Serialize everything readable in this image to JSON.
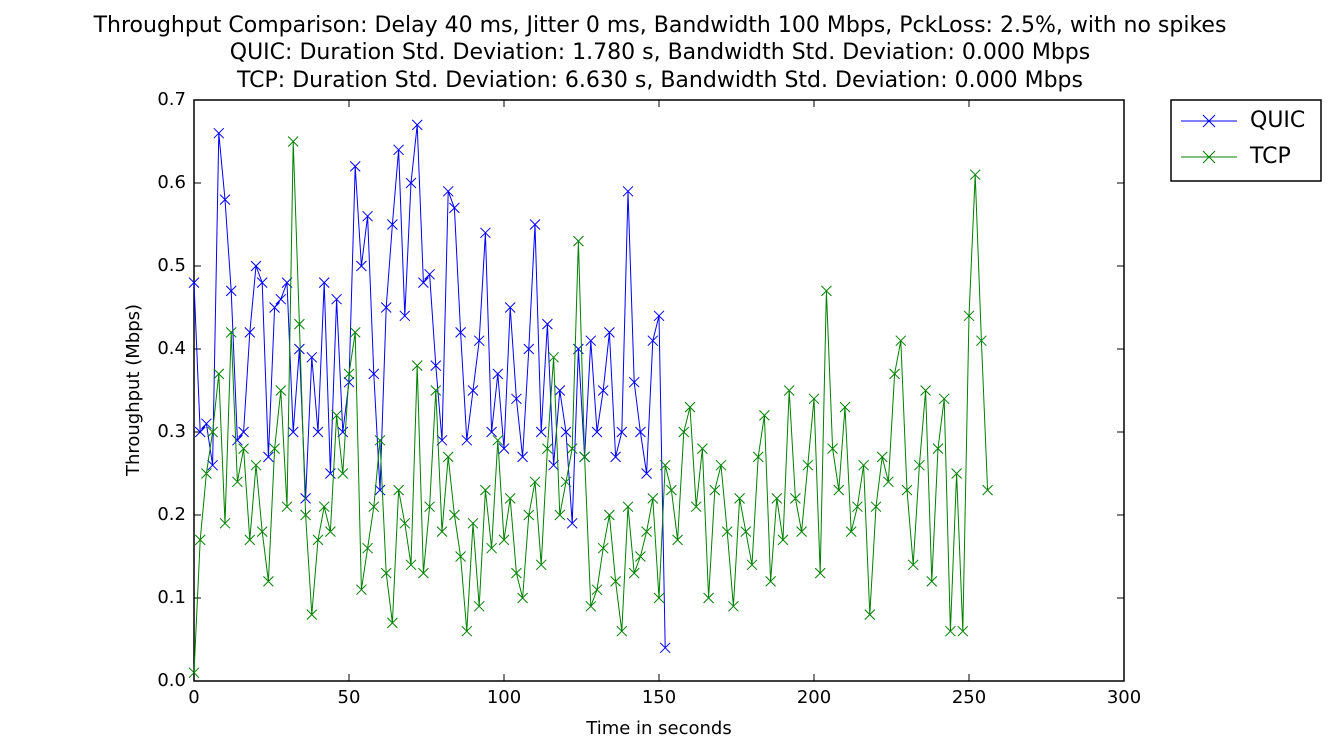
{
  "chart_data": {
    "type": "line",
    "title": "Throughput Comparison: Delay 40 ms, Jitter 0 ms, Bandwidth 100 Mbps, PckLoss: 2.5%, with no spikes",
    "subtitle": [
      "QUIC: Duration Std. Deviation: 1.780 s, Bandwidth Std. Deviation: 0.000 Mbps",
      "TCP: Duration Std. Deviation: 6.630 s, Bandwidth Std. Deviation: 0.000 Mbps"
    ],
    "x_label": "Time in seconds",
    "y_label": "Throughput (Mbps)",
    "xlim": [
      0,
      300
    ],
    "xticks": [
      0,
      50,
      100,
      150,
      200,
      250,
      300
    ],
    "ylim": [
      0,
      0.7
    ],
    "yticks": [
      {
        "value": 0,
        "label": "0.0"
      },
      0.1,
      0.2,
      0.3,
      0.4,
      0.5,
      0.6,
      0.7
    ],
    "legend": "outside-upper-right",
    "marker": "x",
    "series": [
      {
        "name": "QUIC",
        "color": "#0000ff",
        "x": [
          0,
          2,
          4,
          6,
          8,
          10,
          12,
          14,
          16,
          18,
          20,
          22,
          24,
          26,
          28,
          30,
          32,
          34,
          36,
          38,
          40,
          42,
          44,
          46,
          48,
          50,
          52,
          54,
          56,
          58,
          60,
          62,
          64,
          66,
          68,
          70,
          72,
          74,
          76,
          78,
          80,
          82,
          84,
          86,
          88,
          90,
          92,
          94,
          96,
          98,
          100,
          102,
          104,
          106,
          108,
          110,
          112,
          114,
          116,
          118,
          120,
          122,
          124,
          126,
          128,
          130,
          132,
          134,
          136,
          138,
          140,
          142,
          144,
          146,
          148,
          150,
          152
        ],
        "values": [
          0.48,
          0.3,
          0.31,
          0.26,
          0.66,
          0.58,
          0.47,
          0.29,
          0.3,
          0.42,
          0.5,
          0.48,
          0.27,
          0.45,
          0.46,
          0.48,
          0.3,
          0.4,
          0.22,
          0.39,
          0.3,
          0.48,
          0.25,
          0.46,
          0.3,
          0.36,
          0.62,
          0.5,
          0.56,
          0.37,
          0.23,
          0.45,
          0.55,
          0.64,
          0.44,
          0.6,
          0.67,
          0.48,
          0.49,
          0.38,
          0.29,
          0.59,
          0.57,
          0.42,
          0.29,
          0.35,
          0.41,
          0.54,
          0.3,
          0.37,
          0.28,
          0.45,
          0.34,
          0.27,
          0.4,
          0.55,
          0.3,
          0.43,
          0.26,
          0.35,
          0.3,
          0.19,
          0.4,
          0.27,
          0.41,
          0.3,
          0.35,
          0.42,
          0.27,
          0.3,
          0.59,
          0.36,
          0.3,
          0.25,
          0.41,
          0.44,
          0.04
        ]
      },
      {
        "name": "TCP",
        "color": "#008000",
        "x": [
          0,
          2,
          4,
          6,
          8,
          10,
          12,
          14,
          16,
          18,
          20,
          22,
          24,
          26,
          28,
          30,
          32,
          34,
          36,
          38,
          40,
          42,
          44,
          46,
          48,
          50,
          52,
          54,
          56,
          58,
          60,
          62,
          64,
          66,
          68,
          70,
          72,
          74,
          76,
          78,
          80,
          82,
          84,
          86,
          88,
          90,
          92,
          94,
          96,
          98,
          100,
          102,
          104,
          106,
          108,
          110,
          112,
          114,
          116,
          118,
          120,
          122,
          124,
          126,
          128,
          130,
          132,
          134,
          136,
          138,
          140,
          142,
          144,
          146,
          148,
          150,
          152,
          154,
          156,
          158,
          160,
          162,
          164,
          166,
          168,
          170,
          172,
          174,
          176,
          178,
          180,
          182,
          184,
          186,
          188,
          190,
          192,
          194,
          196,
          198,
          200,
          202,
          204,
          206,
          208,
          210,
          212,
          214,
          216,
          218,
          220,
          222,
          224,
          226,
          228,
          230,
          232,
          234,
          236,
          238,
          240,
          242,
          244,
          246,
          248,
          250,
          252,
          254,
          256
        ],
        "values": [
          0.01,
          0.17,
          0.25,
          0.3,
          0.37,
          0.19,
          0.42,
          0.24,
          0.28,
          0.17,
          0.26,
          0.18,
          0.12,
          0.28,
          0.35,
          0.21,
          0.65,
          0.43,
          0.2,
          0.08,
          0.17,
          0.21,
          0.18,
          0.32,
          0.25,
          0.37,
          0.42,
          0.11,
          0.16,
          0.21,
          0.29,
          0.13,
          0.07,
          0.23,
          0.19,
          0.14,
          0.38,
          0.13,
          0.21,
          0.35,
          0.18,
          0.27,
          0.2,
          0.15,
          0.06,
          0.19,
          0.09,
          0.23,
          0.16,
          0.29,
          0.17,
          0.22,
          0.13,
          0.1,
          0.2,
          0.24,
          0.14,
          0.28,
          0.39,
          0.2,
          0.24,
          0.28,
          0.53,
          0.27,
          0.09,
          0.11,
          0.16,
          0.2,
          0.12,
          0.06,
          0.21,
          0.13,
          0.15,
          0.18,
          0.22,
          0.1,
          0.26,
          0.23,
          0.17,
          0.3,
          0.33,
          0.21,
          0.28,
          0.1,
          0.23,
          0.26,
          0.18,
          0.09,
          0.22,
          0.18,
          0.14,
          0.27,
          0.32,
          0.12,
          0.22,
          0.17,
          0.35,
          0.22,
          0.18,
          0.26,
          0.34,
          0.13,
          0.47,
          0.28,
          0.23,
          0.33,
          0.18,
          0.21,
          0.26,
          0.08,
          0.21,
          0.27,
          0.24,
          0.37,
          0.41,
          0.23,
          0.14,
          0.26,
          0.35,
          0.12,
          0.28,
          0.34,
          0.06,
          0.25,
          0.06,
          0.44,
          0.61,
          0.41,
          0.23
        ]
      }
    ]
  }
}
